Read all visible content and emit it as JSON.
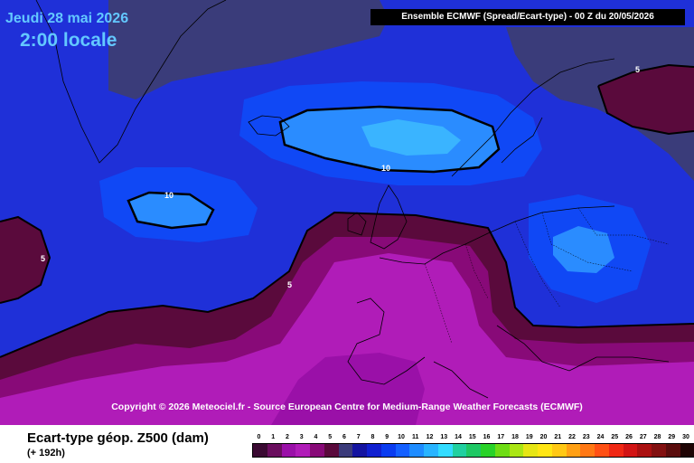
{
  "header": {
    "date": "Jeudi 28 mai 2026",
    "local_time": "2:00 locale",
    "model_info": "Ensemble ECMWF  (Spread/Ecart-type) - 00 Z du 20/05/2026"
  },
  "copyright": "Copyright © 2026 Meteociel.fr - Source European Centre for Medium-Range Weather Forecasts (ECMWF)",
  "legend": {
    "title": "Ecart-type géop. Z500 (dam)",
    "subtitle": "(+ 192h)",
    "scale_values": [
      "0",
      "1",
      "2",
      "3",
      "4",
      "5",
      "6",
      "7",
      "8",
      "9",
      "10",
      "11",
      "12",
      "13",
      "14",
      "15",
      "16",
      "17",
      "18",
      "19",
      "20",
      "21",
      "22",
      "23",
      "24",
      "25",
      "26",
      "27",
      "28",
      "29",
      "30"
    ],
    "scale_colors": [
      "#3a0a32",
      "#6a0e5e",
      "#9a10a8",
      "#b01cb8",
      "#880a78",
      "#5a0a3c",
      "#3b3b7a",
      "#1414a0",
      "#1020d0",
      "#0a3cf0",
      "#1460ff",
      "#1e8cff",
      "#28b4ff",
      "#32dcff",
      "#20d0a0",
      "#1ec864",
      "#28d228",
      "#6edc14",
      "#aae614",
      "#e6e614",
      "#ffe614",
      "#ffc814",
      "#ffa014",
      "#ff7814",
      "#ff5014",
      "#f02814",
      "#d21414",
      "#aa1010",
      "#821010",
      "#5a0c0c",
      "#1e0404"
    ]
  },
  "contour_labels": [
    {
      "text": "10",
      "id": "contour-10-iceland"
    },
    {
      "text": "10",
      "id": "contour-10-atlantic"
    },
    {
      "text": "5",
      "id": "contour-5-russia"
    },
    {
      "text": "5",
      "id": "contour-5-west"
    },
    {
      "text": "5",
      "id": "contour-5-atlantic"
    }
  ],
  "colors": {
    "spread_8": "#1f30d8",
    "spread_9": "#1048f5",
    "spread_10": "#2a8cff",
    "spread_11": "#3ab4ff",
    "spread_6": "#3a3c7a",
    "spread_5": "#5a0a3c",
    "spread_4": "#880a78",
    "spread_3": "#b01cb8",
    "spread_2": "#9a10a8"
  }
}
